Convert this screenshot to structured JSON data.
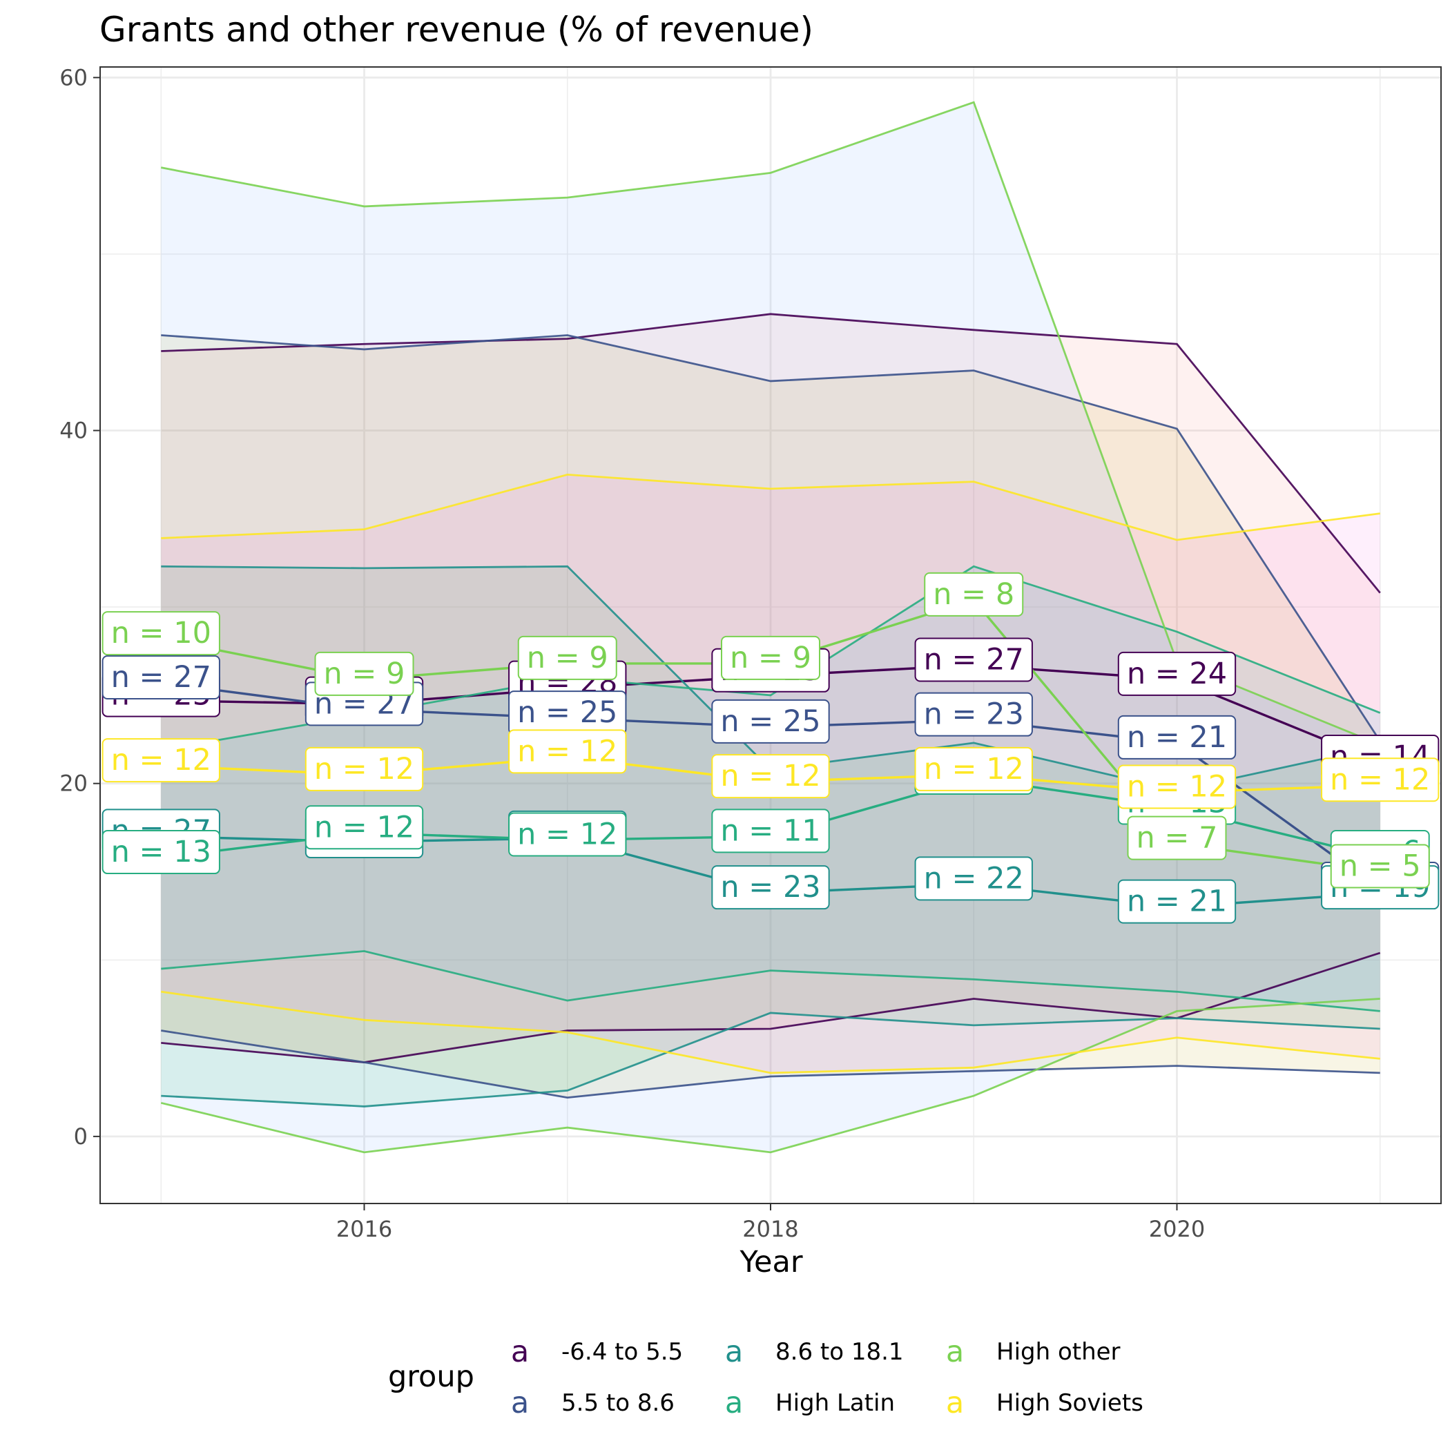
{
  "chart_data": {
    "type": "line",
    "title": "Grants and other revenue (% of revenue)",
    "xlabel": "Year",
    "ylabel": "",
    "xlim": [
      2014.7,
      2021.3
    ],
    "ylim": [
      -3.8,
      60.6
    ],
    "x_ticks": [
      "2016",
      "2018",
      "2020"
    ],
    "y_ticks": [
      "0",
      "20",
      "40",
      "60"
    ],
    "grid": true,
    "legend": {
      "title": "group",
      "position": "bottom",
      "key_glyph": "a"
    },
    "x": [
      2015,
      2016,
      2017,
      2018,
      2019,
      2020,
      2021
    ],
    "series": [
      {
        "name": "-6.4 to 5.5",
        "color": "#440154",
        "fill": "#f8766d",
        "median": [
          24.7,
          24.5,
          25.4,
          26.1,
          26.7,
          25.9,
          21.2
        ],
        "upper": [
          44.5,
          44.9,
          45.2,
          46.6,
          45.7,
          44.9,
          30.8
        ],
        "lower": [
          5.3,
          4.2,
          6.0,
          6.1,
          7.8,
          6.7,
          10.4
        ],
        "n": [
          "25",
          "27",
          "28",
          "25",
          "27",
          "24",
          "14"
        ]
      },
      {
        "name": "5.5 to 8.6",
        "color": "#3b528b",
        "fill": "#b79f00",
        "median": [
          25.7,
          24.2,
          23.7,
          23.2,
          23.6,
          22.3,
          14.0
        ],
        "upper": [
          45.4,
          44.6,
          45.4,
          42.8,
          43.4,
          40.1,
          22.4
        ],
        "lower": [
          6.0,
          4.2,
          2.2,
          3.4,
          3.7,
          4.0,
          3.6
        ],
        "n": [
          "27",
          "27",
          "25",
          "25",
          "23",
          "21",
          "14"
        ]
      },
      {
        "name": "8.6 to 18.1",
        "color": "#21908c",
        "fill": "#00ba38",
        "median": [
          17.0,
          16.7,
          16.9,
          13.8,
          14.3,
          13.0,
          13.8
        ],
        "upper": [
          32.3,
          32.2,
          32.3,
          20.8,
          22.3,
          19.6,
          22.1
        ],
        "lower": [
          2.3,
          1.7,
          2.6,
          7.0,
          6.3,
          6.7,
          6.1
        ],
        "n": [
          "27",
          "26",
          "26",
          "23",
          "22",
          "21",
          "19"
        ]
      },
      {
        "name": "High Latin",
        "color": "#27ad81",
        "fill": "#00bfc4",
        "median": [
          15.8,
          17.2,
          16.8,
          17.0,
          20.3,
          18.6,
          15.8
        ],
        "upper": [
          21.9,
          23.9,
          26.0,
          25.0,
          32.3,
          28.6,
          24.0
        ],
        "lower": [
          9.5,
          10.5,
          7.7,
          9.4,
          8.9,
          8.2,
          7.1
        ],
        "n": [
          "13",
          "12",
          "12",
          "11",
          "12",
          "13",
          "6"
        ]
      },
      {
        "name": "High other",
        "color": "#7ad151",
        "fill": "#619cff",
        "median": [
          28.2,
          25.9,
          26.8,
          26.8,
          30.4,
          16.6,
          15.0
        ],
        "upper": [
          54.9,
          52.7,
          53.2,
          54.6,
          58.6,
          26.9,
          22.2
        ],
        "lower": [
          1.9,
          -0.9,
          0.5,
          -0.9,
          2.3,
          7.1,
          7.8
        ],
        "n": [
          "10",
          "9",
          "9",
          "9",
          "8",
          "7",
          "5"
        ]
      },
      {
        "name": "High Soviets",
        "color": "#fde725",
        "fill": "#f564e3",
        "median": [
          21.0,
          20.5,
          21.5,
          20.1,
          20.5,
          19.5,
          19.9
        ],
        "upper": [
          33.9,
          34.4,
          37.5,
          36.7,
          37.1,
          33.8,
          35.3
        ],
        "lower": [
          8.2,
          6.6,
          5.9,
          3.6,
          3.9,
          5.6,
          4.4
        ],
        "n": [
          "12",
          "12",
          "12",
          "12",
          "12",
          "12",
          "12"
        ]
      }
    ]
  }
}
